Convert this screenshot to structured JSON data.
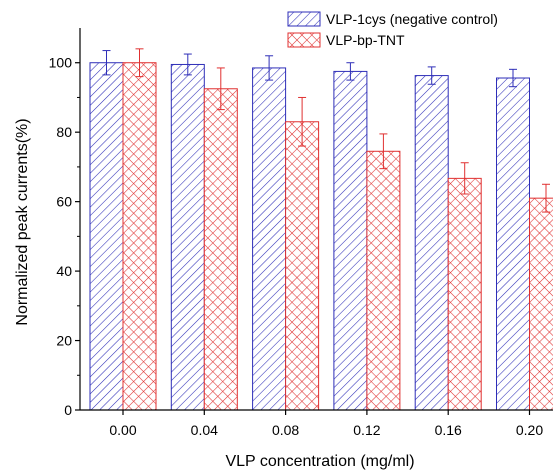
{
  "chart_data": {
    "type": "bar",
    "title": "",
    "xlabel": "VLP concentration (mg/ml)",
    "ylabel": "Normalized peak currents(%)",
    "categories": [
      "0.00",
      "0.04",
      "0.08",
      "0.12",
      "0.16",
      "0.20"
    ],
    "ylim": [
      0,
      110
    ],
    "yticks": [
      0,
      20,
      40,
      60,
      80,
      100
    ],
    "ytick_labels": [
      "0",
      "20",
      "40",
      "60",
      "80",
      "100"
    ],
    "grid": false,
    "legend_position": "top-right",
    "series": [
      {
        "name": "VLP-1cys (negative control)",
        "color": "#2e2eb8",
        "pattern": "diagonal-hatch",
        "values": [
          100,
          99.5,
          98.5,
          97.5,
          96.3,
          95.6
        ],
        "errors": [
          3.5,
          3.0,
          3.5,
          2.5,
          2.5,
          2.5
        ]
      },
      {
        "name": "VLP-bp-TNT",
        "color": "#e03030",
        "pattern": "crosshatch",
        "values": [
          100,
          92.5,
          83,
          74.5,
          66.7,
          61
        ],
        "errors": [
          4.0,
          6.0,
          7.0,
          5.0,
          4.5,
          4.0
        ]
      }
    ]
  }
}
